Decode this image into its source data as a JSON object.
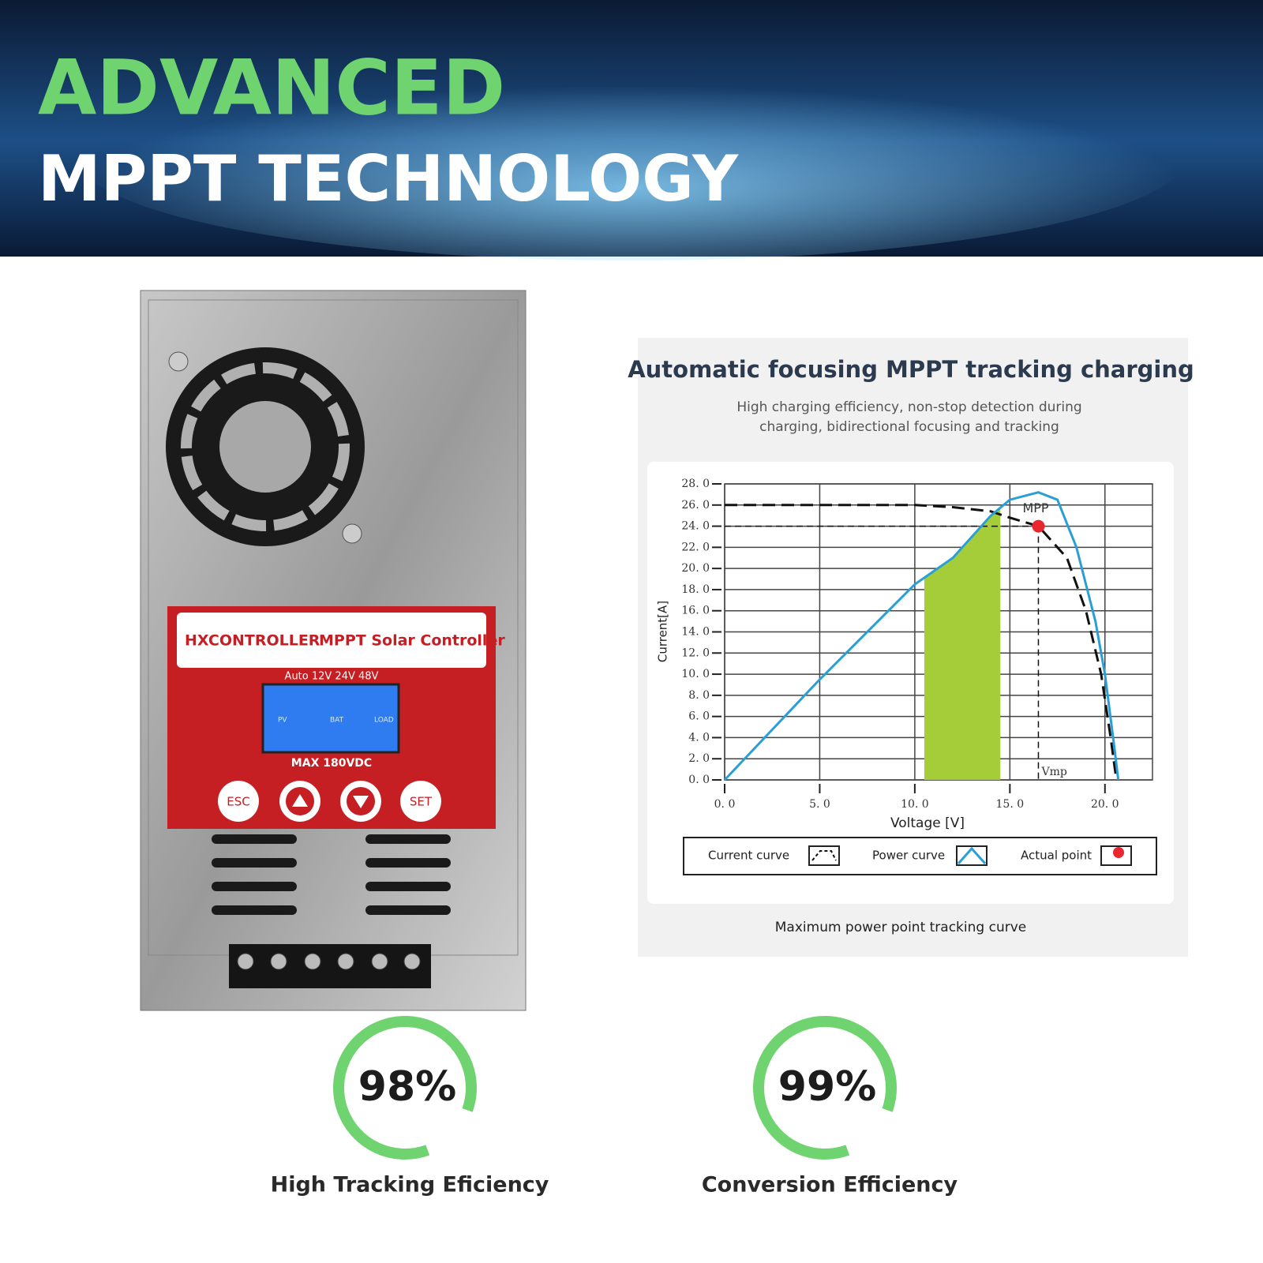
{
  "header": {
    "title": "ADVANCED",
    "subtitle": "MPPT TECHNOLOGY"
  },
  "product": {
    "brand": "HXCONTROLLER",
    "model": "MPPT Solar Controller",
    "voltage": "Auto 12V 24V 48V",
    "max_input": "MAX 180VDC",
    "buttons": [
      "ESC",
      "SET"
    ],
    "lcd_labels": [
      "PV",
      "BAT",
      "LOAD"
    ]
  },
  "chart_data": {
    "type": "line",
    "title": "Automatic focusing MPPT tracking charging",
    "subtitle": [
      "High charging efficiency, non-stop detection during",
      "charging, bidirectional focusing and tracking"
    ],
    "x_label": "Voltage [V]",
    "y_label": "Current[A]",
    "xlim": [
      0,
      22.5
    ],
    "ylim": [
      0,
      28
    ],
    "xticks": [
      {
        "value": 0,
        "label": "0. 0"
      },
      {
        "value": 5,
        "label": "5. 0"
      },
      {
        "value": 10,
        "label": "10. 0"
      },
      {
        "value": 15,
        "label": "15. 0"
      },
      {
        "value": 20,
        "label": "20. 0"
      }
    ],
    "yticks": [
      {
        "value": 0,
        "label": "0. 0"
      },
      {
        "value": 2,
        "label": "2. 0"
      },
      {
        "value": 4,
        "label": "4. 0"
      },
      {
        "value": 6,
        "label": "6. 0"
      },
      {
        "value": 8,
        "label": "8. 0"
      },
      {
        "value": 10,
        "label": "10. 0"
      },
      {
        "value": 12,
        "label": "12. 0"
      },
      {
        "value": 14,
        "label": "14. 0"
      },
      {
        "value": 16,
        "label": "16. 0"
      },
      {
        "value": 18,
        "label": "18. 0"
      },
      {
        "value": 20,
        "label": "20. 0"
      },
      {
        "value": 22,
        "label": "22. 0"
      },
      {
        "value": 24,
        "label": "24. 0"
      },
      {
        "value": 26,
        "label": "26. 0"
      },
      {
        "value": 28,
        "label": "28. 0"
      }
    ],
    "grid": true,
    "series": [
      {
        "name": "Current curve",
        "color": "#111111",
        "dashed": true,
        "x": [
          0,
          5,
          10,
          12,
          14,
          15,
          16.5,
          18,
          19,
          19.8,
          20.3,
          20.6
        ],
        "values": [
          26,
          26,
          26,
          25.8,
          25.4,
          24.8,
          24,
          21,
          16,
          10,
          4,
          0
        ]
      },
      {
        "name": "Power curve",
        "color": "#2a9fd6",
        "dashed": false,
        "x": [
          0,
          5,
          10,
          12,
          14,
          15,
          16.5,
          17.5,
          18.5,
          19.5,
          20,
          20.5,
          20.7
        ],
        "values": [
          0,
          9.5,
          18.5,
          21,
          25,
          26.5,
          27.2,
          26.5,
          22,
          15,
          10,
          3,
          0
        ]
      }
    ],
    "mpp": {
      "name": "Actual point",
      "label": "MPP",
      "x": 16.5,
      "y": 24,
      "color": "#e8282e"
    },
    "vmp_label": "Vmp",
    "shaded_range": [
      10.5,
      14.5
    ],
    "shade_color": "#a4cd39",
    "caption": "Maximum power point tracking curve"
  },
  "stats": [
    {
      "value": "98%",
      "caption": "High Tracking Eficiency"
    },
    {
      "value": "99%",
      "caption": "Conversion Efficiency"
    }
  ]
}
